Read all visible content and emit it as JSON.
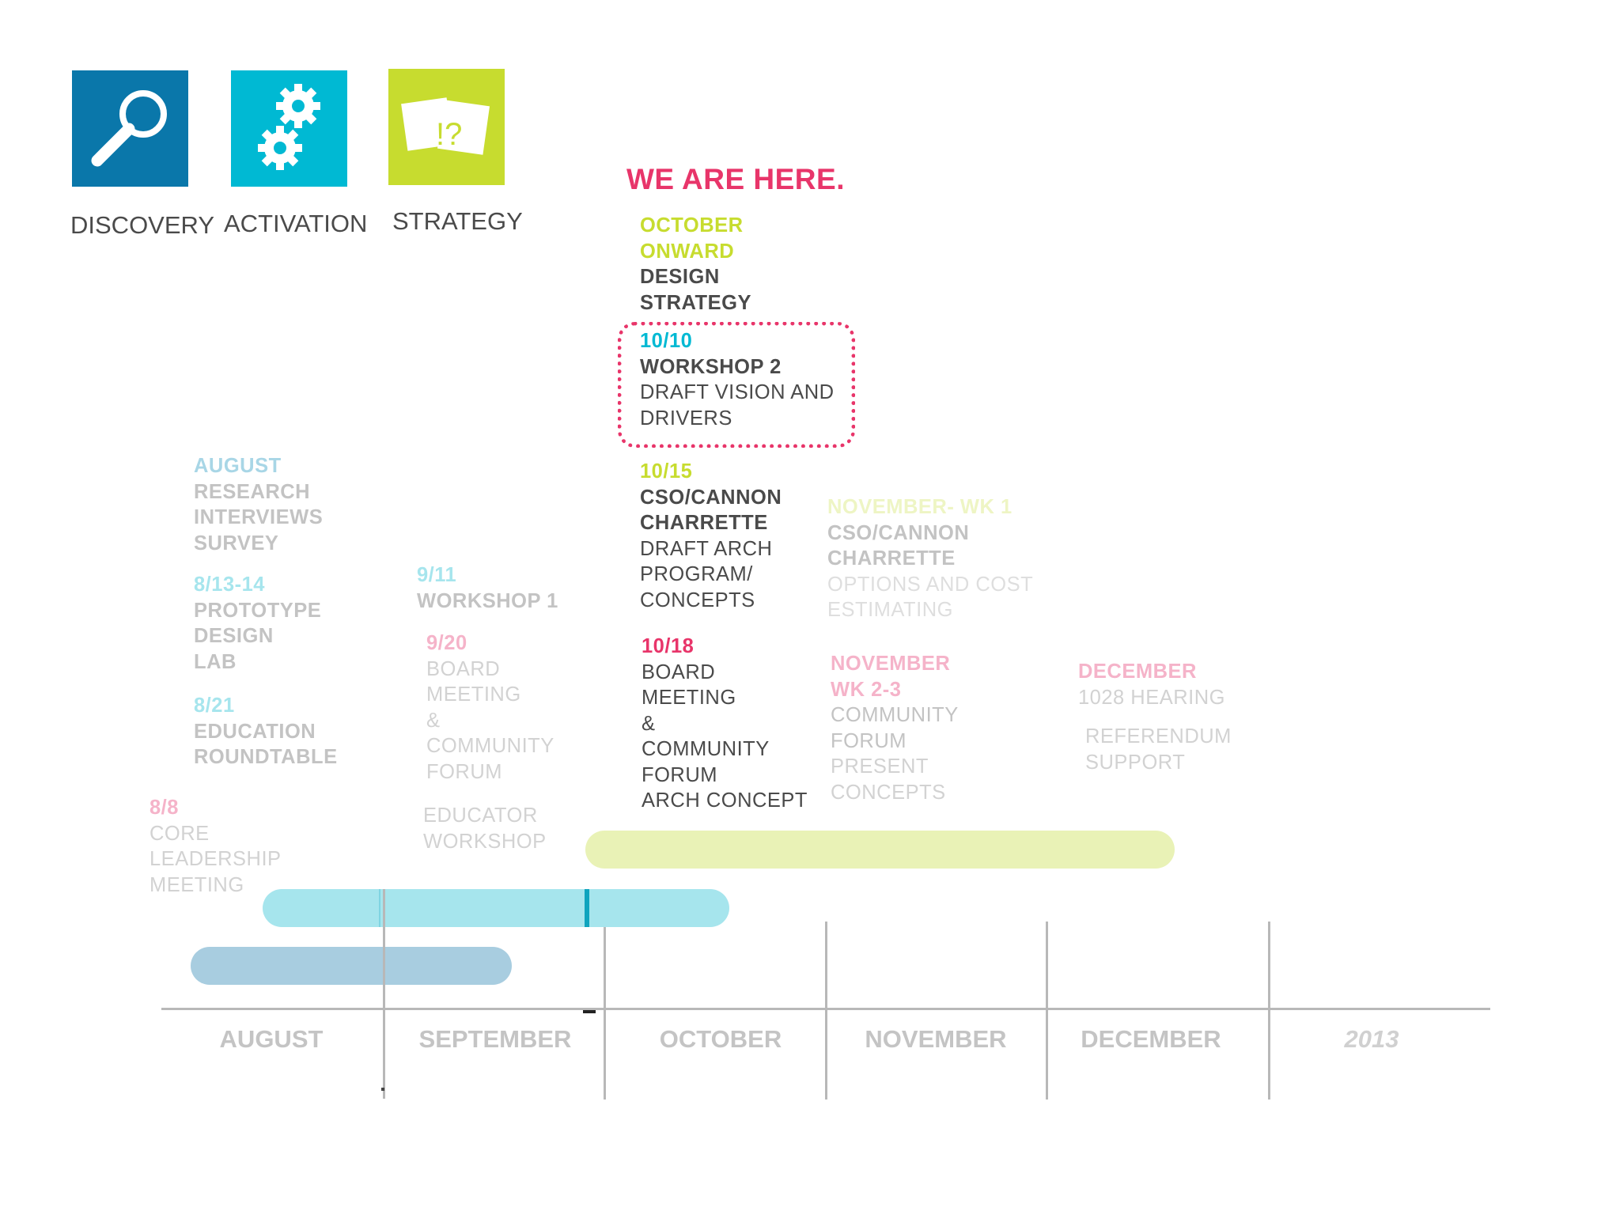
{
  "colors": {
    "discovery": "#0a77aa",
    "activation": "#00b9d3",
    "strategy": "#c7dc2f",
    "pink": "#e8356a",
    "dark": "#4a4a4a",
    "bar_lime": "#e9f2b6",
    "bar_cyan": "#a6e5ed",
    "bar_blue": "#a8cde0"
  },
  "phases": [
    {
      "label": "DISCOVERY",
      "icon": "magnifier-icon"
    },
    {
      "label": "ACTIVATION",
      "icon": "gears-icon"
    },
    {
      "label": "STRATEGY",
      "icon": "cards-question-icon"
    }
  ],
  "strategy_icon_glyph": "!?",
  "we_are_here": "WE ARE HERE.",
  "events": {
    "oct_onward": [
      "OCTOBER",
      "ONWARD",
      "DESIGN",
      "STRATEGY"
    ],
    "oct10": [
      "10/10",
      "WORKSHOP 2",
      "DRAFT VISION AND",
      "DRIVERS"
    ],
    "oct15": [
      "10/15",
      "CSO/CANNON",
      "CHARRETTE",
      "DRAFT ARCH",
      "PROGRAM/",
      "CONCEPTS"
    ],
    "oct18": [
      "10/18",
      "BOARD",
      "MEETING",
      "&",
      "COMMUNITY",
      "FORUM",
      "ARCH CONCEPT"
    ],
    "nov_wk1": [
      "NOVEMBER- WK 1",
      "CSO/CANNON",
      "CHARRETTE",
      "OPTIONS AND COST",
      "ESTIMATING"
    ],
    "nov_wk23": [
      "NOVEMBER",
      "WK 2-3",
      "COMMUNITY",
      "FORUM",
      "PRESENT",
      "CONCEPTS"
    ],
    "december": [
      "DECEMBER",
      "1028 HEARING"
    ],
    "referendum": [
      "REFERENDUM",
      "SUPPORT"
    ],
    "august": [
      "AUGUST",
      "RESEARCH",
      "INTERVIEWS",
      "SURVEY"
    ],
    "aug13": [
      "8/13-14",
      "PROTOTYPE",
      "DESIGN",
      "LAB"
    ],
    "aug21": [
      "8/21",
      "EDUCATION",
      "ROUNDTABLE"
    ],
    "aug8": [
      "8/8",
      "CORE",
      "LEADERSHIP",
      "MEETING"
    ],
    "sep11": [
      "9/11",
      "WORKSHOP 1"
    ],
    "sep20": [
      "9/20",
      "BOARD",
      "MEETING",
      "&",
      "COMMUNITY",
      "FORUM"
    ],
    "educator": [
      "EDUCATOR",
      "WORKSHOP"
    ]
  },
  "timeline": {
    "months": [
      "AUGUST",
      "SEPTEMBER",
      "OCTOBER",
      "NOVEMBER",
      "DECEMBER",
      "2013"
    ]
  }
}
